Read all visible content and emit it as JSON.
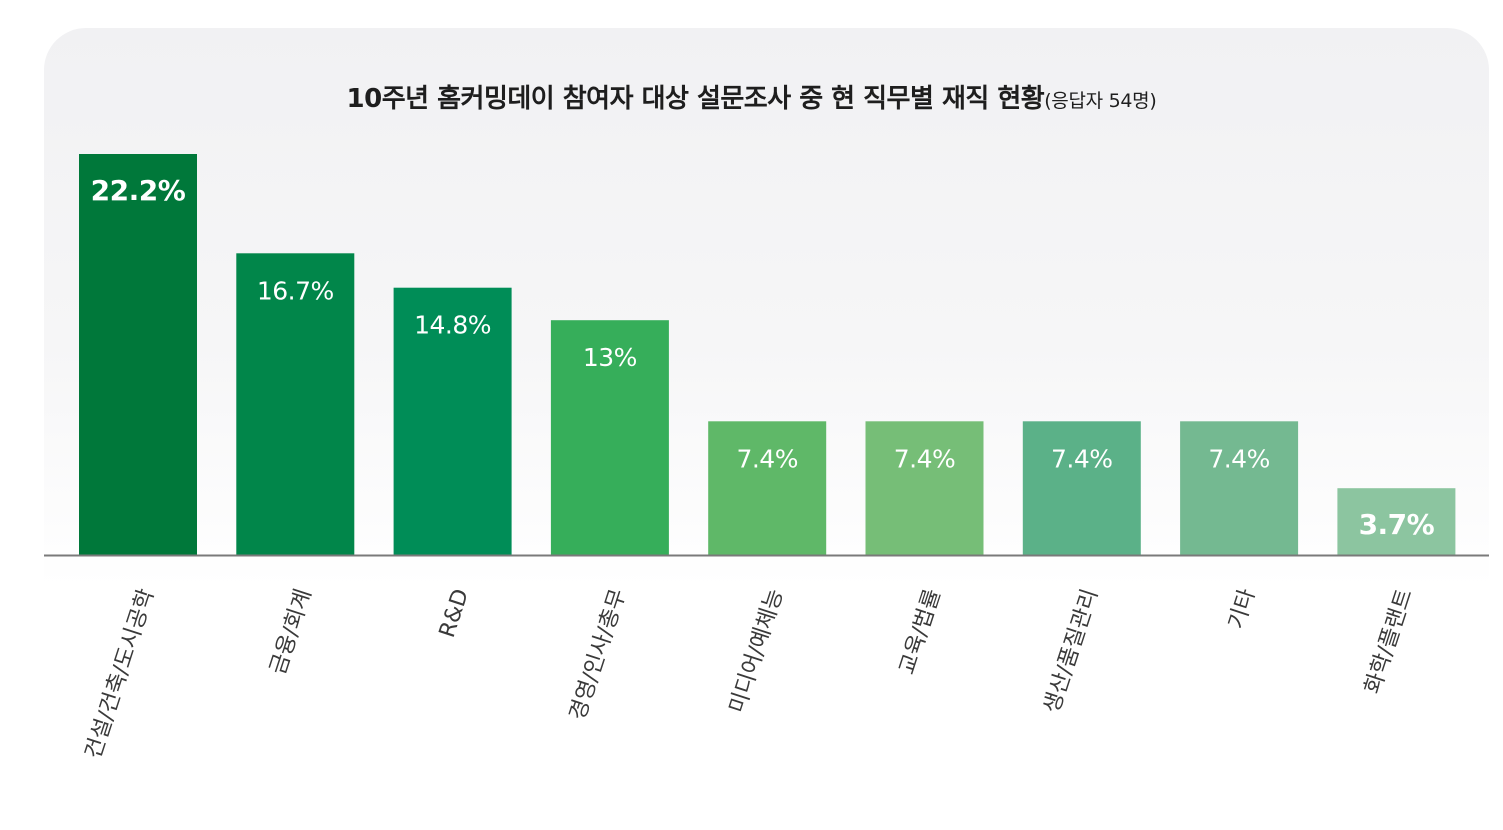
{
  "title": {
    "main": "10주년 홈커밍데이 참여자 대상 설문조사 중 현 직무별 재직 현황",
    "sub": "(응답자 54명)"
  },
  "chart_data": {
    "type": "bar",
    "categories": [
      "건설/건축/도시공학",
      "금융/회계",
      "R&D",
      "경영/인사/총무",
      "미디어/예체능",
      "교육/법률",
      "생산/품질관리",
      "기타",
      "화학/플랜트"
    ],
    "values": [
      22.2,
      16.7,
      14.8,
      13,
      7.4,
      7.4,
      7.4,
      7.4,
      3.7
    ],
    "value_labels": [
      "22.2%",
      "16.7%",
      "14.8%",
      "13%",
      "7.4%",
      "7.4%",
      "7.4%",
      "7.4%",
      "3.7%"
    ],
    "bold_labels": [
      true,
      false,
      false,
      false,
      false,
      false,
      false,
      false,
      true
    ],
    "colors": [
      "#00783a",
      "#01864a",
      "#008d57",
      "#36ae5a",
      "#5fb868",
      "#76be77",
      "#5bb188",
      "#74b991",
      "#8cc5a0"
    ],
    "ylim": [
      0,
      22.2
    ],
    "axis_color": "#7a7a7a",
    "label_color": "#ffffff",
    "category_color": "#3a3a3a"
  }
}
